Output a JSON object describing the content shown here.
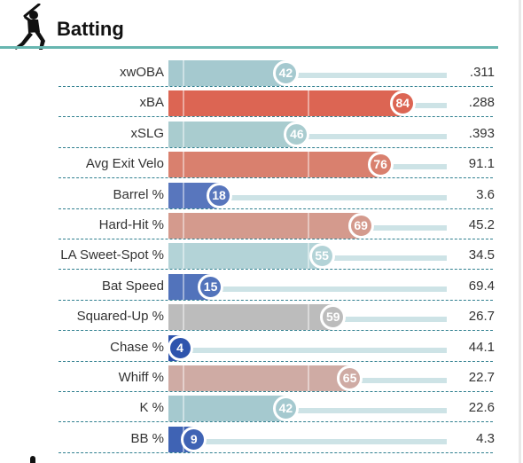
{
  "header": {
    "title": "Batting",
    "icon": "batter-silhouette-icon"
  },
  "colors": {
    "accent_rule": "#67b6b0",
    "divider": "#2f7f8f",
    "track": "#cde3e6"
  },
  "metrics": [
    {
      "label": "xwOBA",
      "percentile": 42,
      "value": ".311",
      "color": "#a5c9cf"
    },
    {
      "label": "xBA",
      "percentile": 84,
      "value": ".288",
      "color": "#dc6553"
    },
    {
      "label": "xSLG",
      "percentile": 46,
      "value": ".393",
      "color": "#a9cccf"
    },
    {
      "label": "Avg Exit Velo",
      "percentile": 76,
      "value": "91.1",
      "color": "#d9806e"
    },
    {
      "label": "Barrel %",
      "percentile": 18,
      "value": "3.6",
      "color": "#5876bd"
    },
    {
      "label": "Hard-Hit %",
      "percentile": 69,
      "value": "45.2",
      "color": "#d49a8d"
    },
    {
      "label": "LA Sweet-Spot %",
      "percentile": 55,
      "value": "34.5",
      "color": "#b3d3d7"
    },
    {
      "label": "Bat Speed",
      "percentile": 15,
      "value": "69.4",
      "color": "#5273bb"
    },
    {
      "label": "Squared-Up %",
      "percentile": 59,
      "value": "26.7",
      "color": "#bcbcbc"
    },
    {
      "label": "Chase %",
      "percentile": 4,
      "value": "44.1",
      "color": "#2e54ad"
    },
    {
      "label": "Whiff %",
      "percentile": 65,
      "value": "22.7",
      "color": "#cfaba4"
    },
    {
      "label": "K %",
      "percentile": 42,
      "value": "22.6",
      "color": "#a5c9cf"
    },
    {
      "label": "BB %",
      "percentile": 9,
      "value": "4.3",
      "color": "#3f63b4"
    }
  ]
}
